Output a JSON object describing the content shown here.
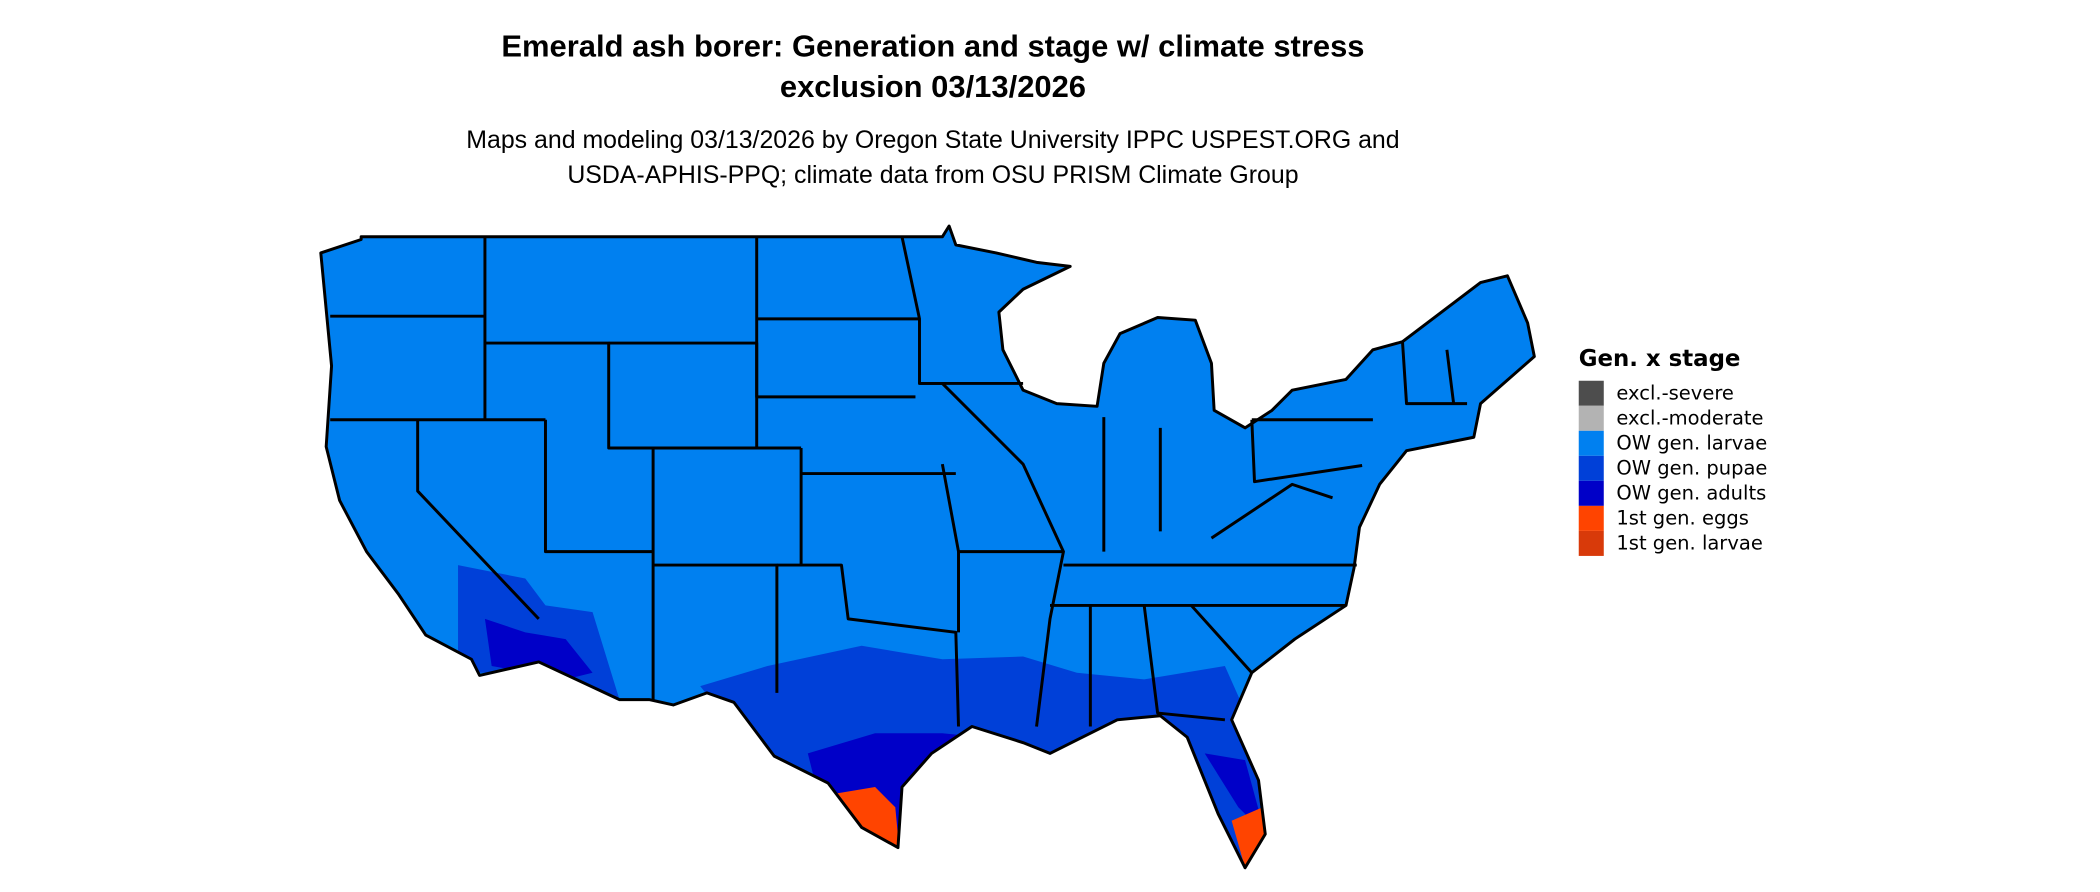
{
  "title_line1": "Emerald ash borer: Generation and stage w/ climate stress",
  "title_line2": "exclusion 03/13/2026",
  "subtitle_line1": "Maps and modeling 03/13/2026 by Oregon State University IPPC USPEST.ORG and",
  "subtitle_line2": "USDA-APHIS-PPQ; climate data from OSU PRISM Climate Group",
  "legend": {
    "title": "Gen. x stage",
    "items": [
      {
        "label": "excl.-severe",
        "color": "#4d4d4d"
      },
      {
        "label": "excl.-moderate",
        "color": "#b3b3b3"
      },
      {
        "label": "OW gen. larvae",
        "color": "#0080f0"
      },
      {
        "label": "OW gen. pupae",
        "color": "#0040d8"
      },
      {
        "label": "OW gen. adults",
        "color": "#0000c8"
      },
      {
        "label": "1st gen. eggs",
        "color": "#ff4400"
      },
      {
        "label": "1st gen. larvae",
        "color": "#d83a0a"
      }
    ]
  }
}
